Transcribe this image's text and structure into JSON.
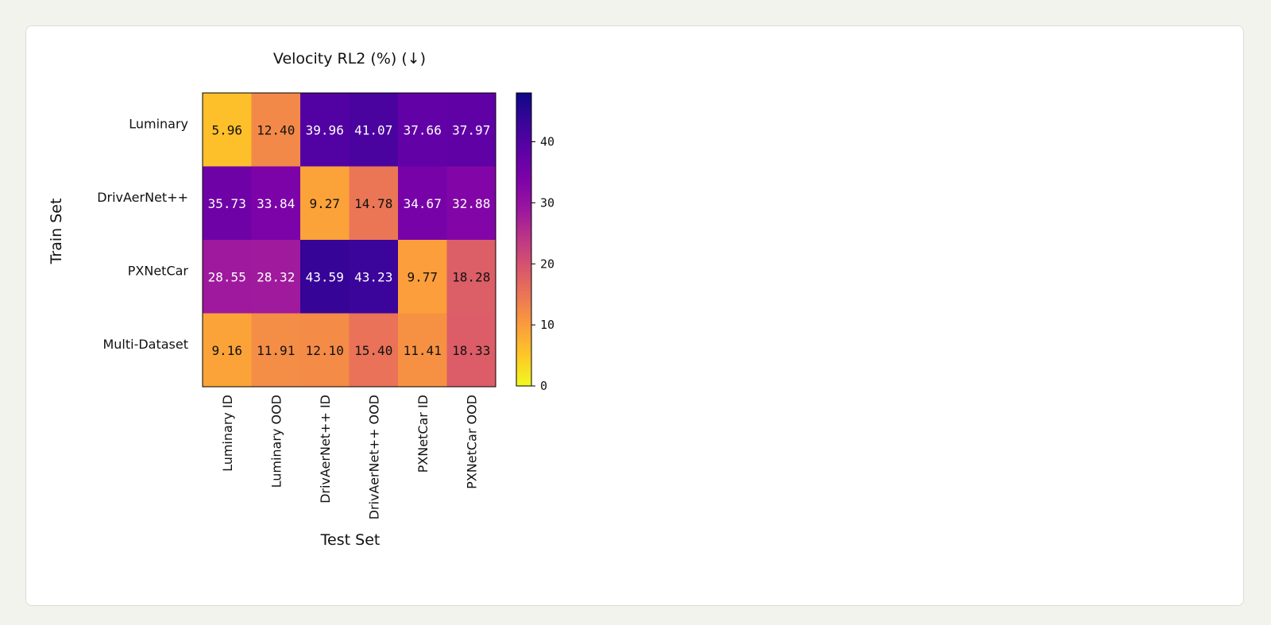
{
  "chart_data": {
    "type": "heatmap",
    "title": "Velocity RL2 (%) (↓)",
    "xlabel": "Test Set",
    "ylabel": "Train Set",
    "columns": [
      "Luminary ID",
      "Luminary OOD",
      "DrivAerNet++ ID",
      "DrivAerNet++ OOD",
      "PXNetCar ID",
      "PXNetCar OOD"
    ],
    "rows": [
      {
        "name": "Luminary",
        "values": [
          5.96,
          12.4,
          39.96,
          41.07,
          37.66,
          37.97
        ],
        "labels": [
          "5.96",
          "12.40",
          "39.96",
          "41.07",
          "37.66",
          "37.97"
        ]
      },
      {
        "name": "DrivAerNet++",
        "values": [
          35.73,
          33.84,
          9.27,
          14.78,
          34.67,
          32.88
        ],
        "labels": [
          "35.73",
          "33.84",
          "9.27",
          "14.78",
          "34.67",
          "32.88"
        ]
      },
      {
        "name": "PXNetCar",
        "values": [
          28.55,
          28.32,
          43.59,
          43.23,
          9.77,
          18.28
        ],
        "labels": [
          "28.55",
          "28.32",
          "43.59",
          "43.23",
          "9.77",
          "18.28"
        ]
      },
      {
        "name": "Multi-Dataset",
        "values": [
          9.16,
          11.91,
          12.1,
          15.4,
          11.41,
          18.33
        ],
        "labels": [
          "9.16",
          "11.91",
          "12.10",
          "15.40",
          "11.41",
          "18.33"
        ]
      }
    ],
    "colormap": "plasma_r",
    "vmin": 0,
    "vmax": 48,
    "colorbar_ticks": [
      0,
      10,
      20,
      30,
      40
    ],
    "colorbar_tick_labels": [
      "0",
      "10",
      "20",
      "30",
      "40"
    ]
  }
}
